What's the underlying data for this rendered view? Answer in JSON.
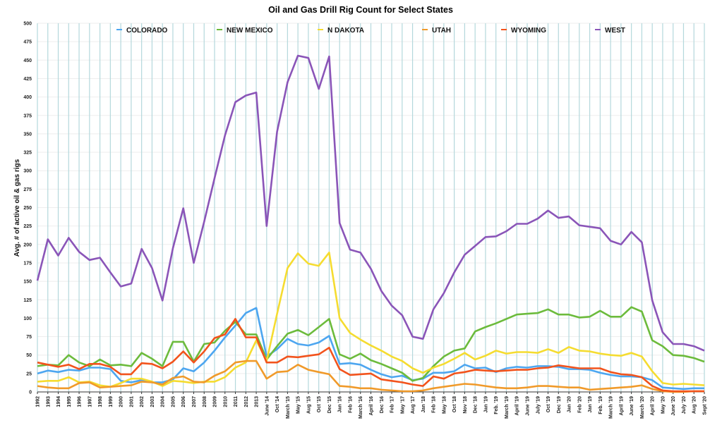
{
  "chart_data": {
    "type": "line",
    "title": "Oil and Gas Drill Rig Count for Select States",
    "xlabel": "",
    "ylabel": "Avg. # of active oil & gas rigs",
    "ylim": [
      0,
      500
    ],
    "yticks": [
      0,
      25,
      50,
      75,
      100,
      125,
      150,
      175,
      200,
      225,
      250,
      275,
      300,
      325,
      350,
      375,
      400,
      425,
      450,
      475,
      500
    ],
    "grid": true,
    "legend_position": "top",
    "x": [
      "1992",
      "1993",
      "1994",
      "1995",
      "1996",
      "1997",
      "1998",
      "1999",
      "2000",
      "2001",
      "2002",
      "2003",
      "2004",
      "2005",
      "2006",
      "2007",
      "2008",
      "2009",
      "2010",
      "2011",
      "2012",
      "2013",
      "June '14",
      "Oct '14",
      "March '15",
      "May '15",
      "Aug '15",
      "Oct '15",
      "Dec '15",
      "Jan '16",
      "Feb '16",
      "March '16",
      "April '16",
      "Dec '16",
      "Feb '17",
      "May '17",
      "Aug '17",
      "Jan '18",
      "Feb '18",
      "May '18",
      "Oct '18",
      "Nov '18",
      "Dec '18",
      "Jan '19",
      "Feb. '19",
      "March '19",
      "April '19",
      "June '19",
      "July '19",
      "Oct '19",
      "Dec '19",
      "Jan '20",
      "Feb '20",
      "Jan '19",
      "Feb. '19",
      "March '19",
      "April '19",
      "June '19",
      "March '20",
      "April '20",
      "May '20",
      "June '20",
      "July '20",
      "Aug '20",
      "Sept '20"
    ],
    "series": [
      {
        "name": "COLORADO",
        "color": "#4da6f0",
        "values": [
          25,
          29,
          27,
          30,
          29,
          33,
          33,
          31,
          15,
          13,
          16,
          13,
          13,
          17,
          32,
          28,
          40,
          56,
          74,
          90,
          107,
          114,
          48,
          58,
          72,
          65,
          63,
          67,
          76,
          38,
          39,
          37,
          30,
          24,
          20,
          22,
          16,
          18,
          26,
          26,
          28,
          37,
          32,
          33,
          27,
          32,
          34,
          33,
          35,
          35,
          34,
          31,
          31,
          30,
          26,
          23,
          21,
          21,
          20,
          16,
          6,
          5,
          4,
          5,
          5
        ]
      },
      {
        "name": "NEW MEXICO",
        "color": "#6cbb3c",
        "values": [
          35,
          37,
          36,
          50,
          40,
          35,
          44,
          36,
          37,
          35,
          53,
          45,
          35,
          68,
          68,
          41,
          65,
          67,
          83,
          95,
          78,
          78,
          44,
          62,
          79,
          84,
          77,
          88,
          99,
          51,
          45,
          52,
          43,
          38,
          32,
          26,
          15,
          19,
          35,
          48,
          56,
          59,
          82,
          88,
          93,
          99,
          105,
          106,
          107,
          112,
          105,
          105,
          101,
          102,
          110,
          102,
          102,
          115,
          109,
          70,
          62,
          50,
          49,
          46,
          41
        ]
      },
      {
        "name": "N DAKOTA",
        "color": "#f5dc30",
        "values": [
          14,
          15,
          15,
          20,
          13,
          14,
          9,
          7,
          12,
          18,
          18,
          14,
          8,
          15,
          14,
          12,
          14,
          14,
          20,
          33,
          40,
          70,
          42,
          106,
          168,
          188,
          174,
          171,
          189,
          100,
          80,
          71,
          63,
          56,
          48,
          42,
          32,
          26,
          33,
          38,
          45,
          53,
          44,
          49,
          56,
          52,
          54,
          54,
          53,
          58,
          53,
          61,
          56,
          55,
          52,
          50,
          49,
          53,
          48,
          28,
          12,
          10,
          11,
          10,
          9
        ]
      },
      {
        "name": "UTAH",
        "color": "#f09a2a",
        "values": [
          8,
          6,
          5,
          5,
          12,
          13,
          6,
          7,
          8,
          9,
          14,
          13,
          10,
          19,
          21,
          14,
          13,
          22,
          28,
          40,
          42,
          42,
          18,
          27,
          28,
          37,
          30,
          27,
          24,
          8,
          7,
          5,
          5,
          3,
          2,
          1,
          1,
          2,
          5,
          7,
          9,
          11,
          10,
          8,
          6,
          5,
          5,
          6,
          8,
          8,
          7,
          6,
          6,
          3,
          4,
          5,
          6,
          7,
          9,
          4,
          1,
          0,
          0,
          1,
          1
        ]
      },
      {
        "name": "WYOMING",
        "color": "#f2531c",
        "values": [
          40,
          37,
          34,
          37,
          31,
          38,
          38,
          34,
          24,
          24,
          39,
          38,
          32,
          41,
          55,
          40,
          55,
          73,
          78,
          99,
          74,
          74,
          40,
          40,
          48,
          47,
          49,
          51,
          60,
          31,
          23,
          24,
          25,
          17,
          15,
          13,
          10,
          8,
          21,
          18,
          25,
          27,
          30,
          29,
          28,
          29,
          30,
          30,
          32,
          33,
          36,
          34,
          32,
          32,
          32,
          27,
          24,
          23,
          20,
          8,
          2,
          1,
          1,
          1,
          1
        ]
      },
      {
        "name": "WEST",
        "color": "#8a55b8",
        "values": [
          151,
          207,
          185,
          209,
          190,
          179,
          182,
          162,
          143,
          147,
          194,
          168,
          124,
          195,
          249,
          175,
          231,
          290,
          348,
          393,
          402,
          406,
          225,
          353,
          420,
          456,
          453,
          411,
          455,
          229,
          193,
          189,
          167,
          137,
          117,
          104,
          75,
          72,
          112,
          134,
          162,
          186,
          198,
          210,
          211,
          218,
          228,
          228,
          235,
          246,
          236,
          238,
          226,
          224,
          222,
          205,
          200,
          217,
          203,
          124,
          81,
          65,
          65,
          62,
          56
        ]
      }
    ]
  }
}
